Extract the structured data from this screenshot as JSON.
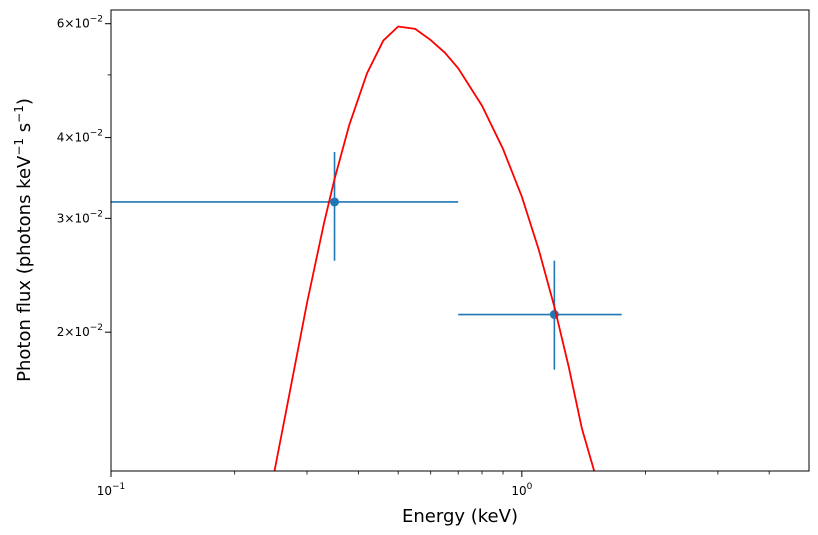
{
  "chart_data": {
    "type": "scatter",
    "title": "",
    "xlabel": "Energy (keV)",
    "ylabel": "Photon flux (photons keV",
    "ylabel_sup1": "−1",
    "ylabel_mid": " s",
    "ylabel_sup2": "−1",
    "ylabel_end": ")",
    "x_scale": "log",
    "y_scale": "log",
    "xlim": [
      0.1,
      5.0
    ],
    "ylim": [
      0.0122,
      0.063
    ],
    "grid": false,
    "x_major_ticks": [
      {
        "value": 0.1,
        "base": "10",
        "exp": "−1"
      },
      {
        "value": 1.0,
        "base": "10",
        "exp": "0"
      }
    ],
    "y_major_ticks": [
      {
        "value": 0.02,
        "mant": "2",
        "exp": "−2"
      },
      {
        "value": 0.03,
        "mant": "3",
        "exp": "−2"
      },
      {
        "value": 0.04,
        "mant": "4",
        "exp": "−2"
      },
      {
        "value": 0.06,
        "mant": "6",
        "exp": "−2"
      }
    ],
    "y_minor_ticks": [
      0.05
    ],
    "series": [
      {
        "kind": "errorbar",
        "color": "#1f77b4",
        "points": [
          {
            "x": 0.35,
            "y": 0.0318,
            "xerr": [
              0.1,
              0.7
            ],
            "yerr": [
              0.0258,
              0.038
            ]
          },
          {
            "x": 1.2,
            "y": 0.0213,
            "xerr": [
              0.7,
              1.75
            ],
            "yerr": [
              0.0175,
              0.0258
            ]
          }
        ]
      },
      {
        "kind": "line",
        "color": "#ff0000",
        "x": [
          0.25,
          0.27,
          0.3,
          0.33,
          0.35,
          0.38,
          0.42,
          0.46,
          0.5,
          0.55,
          0.6,
          0.65,
          0.7,
          0.8,
          0.9,
          1.0,
          1.1,
          1.2,
          1.3,
          1.4,
          1.5
        ],
        "y": [
          0.0122,
          0.0157,
          0.0222,
          0.0295,
          0.0345,
          0.0418,
          0.0503,
          0.0565,
          0.0594,
          0.0589,
          0.0566,
          0.0541,
          0.0512,
          0.0448,
          0.0384,
          0.0324,
          0.0268,
          0.0219,
          0.0177,
          0.0142,
          0.0122
        ]
      }
    ]
  }
}
